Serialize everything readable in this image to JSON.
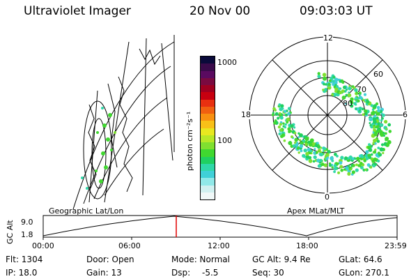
{
  "header": {
    "instrument": "Ultraviolet Imager",
    "date": "20 Nov 00",
    "time": "09:03:03 UT"
  },
  "colorbar": {
    "unit_label": "photon cm⁻²s⁻¹",
    "ticks": [
      "1000",
      "100"
    ],
    "colors": [
      "#0a0a3a",
      "#3a0a4a",
      "#5a0a60",
      "#7a0a40",
      "#a00020",
      "#c80010",
      "#e83010",
      "#f06010",
      "#f89010",
      "#f8c018",
      "#e8e820",
      "#b8e828",
      "#80e030",
      "#40d830",
      "#20d060",
      "#30d8a8",
      "#40d0d8",
      "#90e8e8",
      "#d0f0f0",
      "#f0f8f8"
    ]
  },
  "polar_plot": {
    "mlt_labels": {
      "top": "12",
      "left": "18",
      "right": "6",
      "bottom": "0"
    },
    "lat_labels": [
      "60",
      "70",
      "80"
    ]
  },
  "timeline": {
    "left_label": "Geographic Lat/Lon",
    "right_label": "Apex MLat/MLT",
    "axis_title": "GC Alt",
    "y_top": "9.0",
    "y_bottom": "1.8",
    "x_ticks": [
      "00:00",
      "06:00",
      "12:00",
      "18:00",
      "23:59"
    ],
    "marker_color": "#e00000"
  },
  "info": {
    "flt": "Flt: 1304",
    "ip": "IP: 18.0",
    "door": "Door: Open",
    "gain": "Gain: 13",
    "mode": "Mode: Normal",
    "dsp_label": "Dsp:",
    "dsp_value": "-5.5",
    "gc_alt": "GC Alt: 9.4 Re",
    "seq": "Seq: 30",
    "glat": "GLat:  64.6",
    "glon": "GLon: 270.1"
  }
}
